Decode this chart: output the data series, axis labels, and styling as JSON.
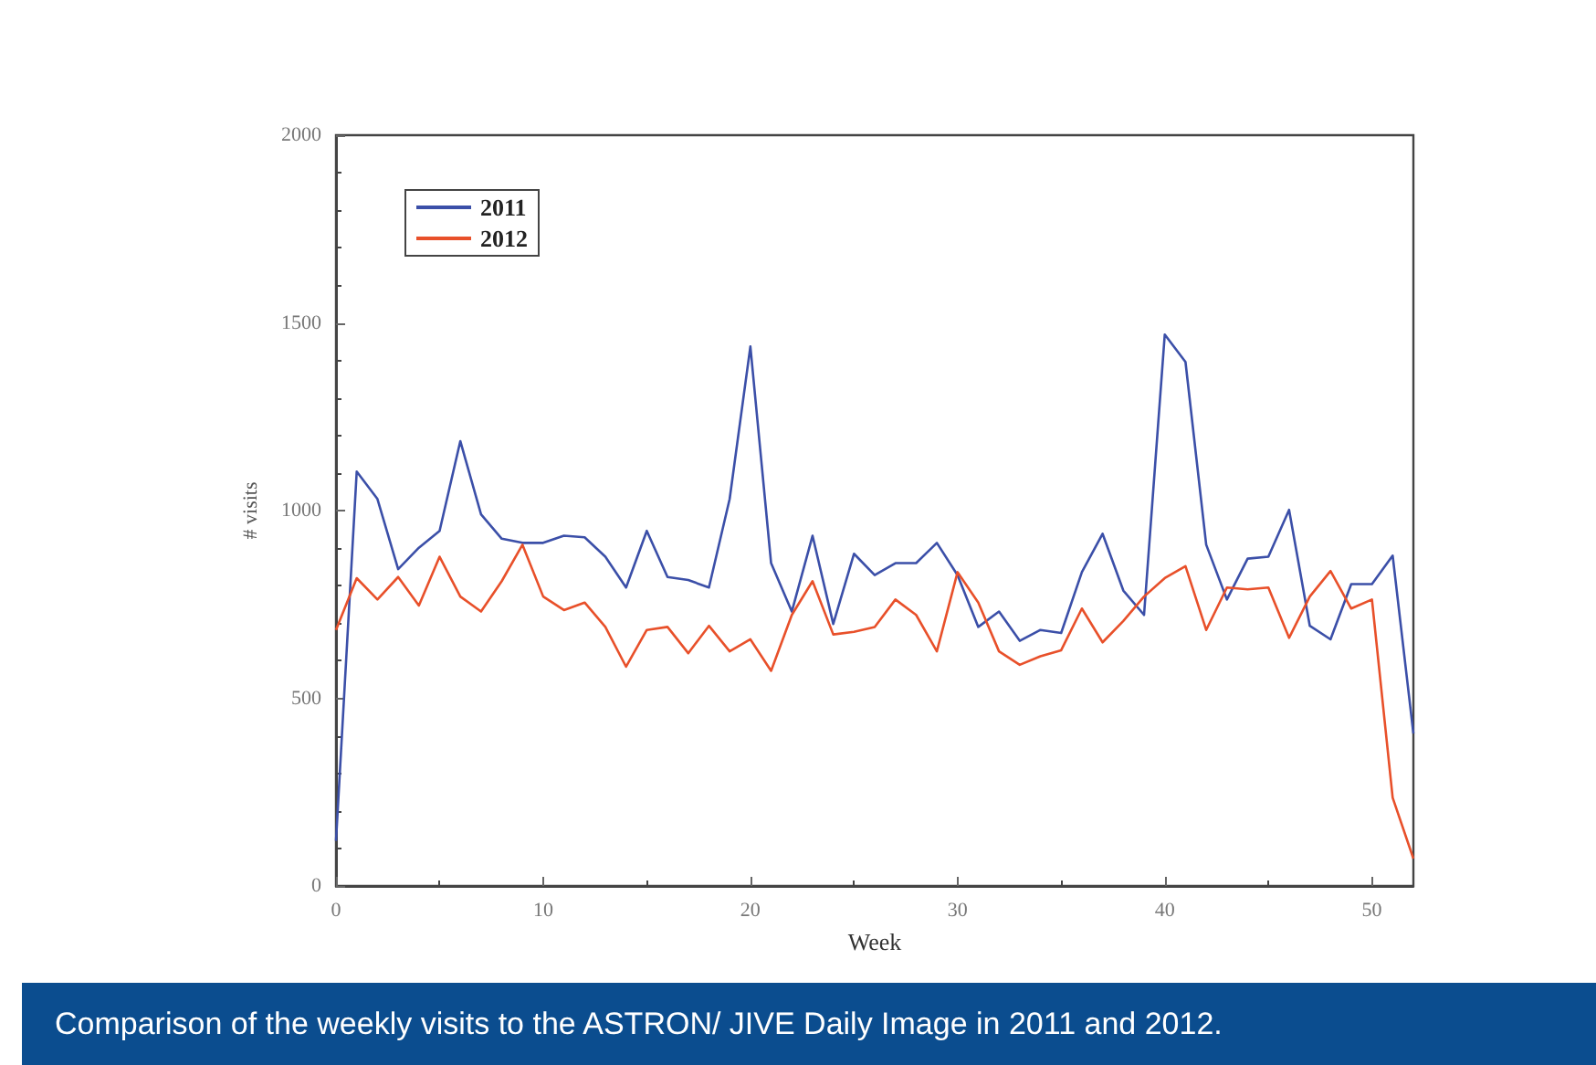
{
  "chart_data": {
    "type": "line",
    "xlabel": "Week",
    "ylabel": "# visits",
    "xlim": [
      0,
      52
    ],
    "xticks": [
      0,
      10,
      20,
      30,
      40,
      50
    ],
    "ylim": [
      0,
      2000
    ],
    "yticks": [
      0,
      500,
      1000,
      1500,
      2000
    ],
    "grid": false,
    "legend": "top left",
    "marker": "none",
    "line_style": "solid",
    "x": [
      0,
      1,
      2,
      3,
      4,
      5,
      6,
      7,
      8,
      9,
      10,
      11,
      12,
      13,
      14,
      15,
      16,
      17,
      18,
      19,
      20,
      21,
      22,
      23,
      24,
      25,
      26,
      27,
      28,
      29,
      30,
      31,
      32,
      33,
      34,
      35,
      36,
      37,
      38,
      39,
      40,
      41,
      42,
      43,
      44,
      45,
      46,
      47,
      48,
      49,
      50,
      51,
      52
    ],
    "series": [
      {
        "name": "2011",
        "color": "#3b4fa8",
        "values": [
          120,
          1104,
          1031,
          844,
          901,
          946,
          1185,
          990,
          925,
          914,
          914,
          933,
          929,
          877,
          795,
          946,
          823,
          815,
          795,
          1031,
          1437,
          860,
          731,
          933,
          698,
          885,
          828,
          860,
          860,
          914,
          828,
          690,
          731,
          653,
          682,
          674,
          836,
          938,
          787,
          722,
          1469,
          1396,
          909,
          763,
          872,
          877,
          1002,
          693,
          657,
          804,
          804,
          880,
          406
        ]
      },
      {
        "name": "2012",
        "color": "#e8502a",
        "values": [
          682,
          820,
          763,
          823,
          747,
          877,
          771,
          731,
          812,
          909,
          771,
          735,
          755,
          690,
          584,
          682,
          690,
          620,
          693,
          625,
          657,
          573,
          722,
          812,
          670,
          677,
          690,
          763,
          722,
          625,
          836,
          755,
          625,
          589,
          612,
          628,
          739,
          649,
          706,
          771,
          820,
          852,
          682,
          795,
          790,
          795,
          661,
          771,
          839,
          739,
          763,
          235,
          73
        ]
      }
    ],
    "annotations": [
      "Comparison of the weekly visits to the ASTRON/ JIVE Daily Image in 2011 and 2012."
    ]
  }
}
